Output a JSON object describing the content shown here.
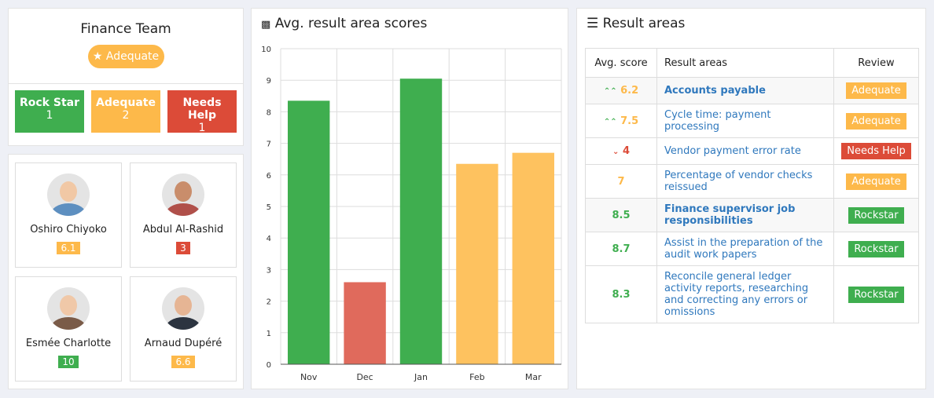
{
  "team": {
    "name": "Finance Team",
    "status": "Adequate",
    "stats": [
      {
        "label": "Rock Star",
        "count": "1",
        "color": "#3fae4f"
      },
      {
        "label": "Adequate",
        "count": "2",
        "color": "#fdb94a"
      },
      {
        "label": "Needs Help",
        "count": "1",
        "color": "#dc4b38"
      }
    ]
  },
  "members": [
    {
      "name": "Oshiro Chiyoko",
      "score": "6.1",
      "color": "#fdb94a"
    },
    {
      "name": "Abdul Al-Rashid",
      "score": "3",
      "color": "#dc4b38"
    },
    {
      "name": "Esmée Charlotte",
      "score": "10",
      "color": "#3fae4f"
    },
    {
      "name": "Arnaud Dupéré",
      "score": "6.6",
      "color": "#fdb94a"
    }
  ],
  "chart_title": "Avg. result area scores",
  "chart_data": {
    "type": "bar",
    "categories": [
      "Nov",
      "Dec",
      "Jan",
      "Feb",
      "Mar"
    ],
    "values": [
      8.35,
      2.6,
      9.05,
      6.35,
      6.7
    ],
    "colors": [
      "#3fae4f",
      "#e06a5c",
      "#3fae4f",
      "#fec25f",
      "#fec25f"
    ],
    "ylim": [
      0,
      10
    ],
    "yticks": [
      0,
      1,
      2,
      3,
      4,
      5,
      6,
      7,
      8,
      9,
      10
    ],
    "grid": true
  },
  "results": {
    "title": "Result areas",
    "headers": [
      "Avg. score",
      "Result areas",
      "Review"
    ],
    "rows": [
      {
        "trend": "up",
        "score": "6.2",
        "score_color": "#fdb94a",
        "area": "Accounts payable",
        "bold": true,
        "review": "Adequate",
        "review_color": "#fdb94a"
      },
      {
        "trend": "up",
        "score": "7.5",
        "score_color": "#fdb94a",
        "area": "Cycle time: payment processing",
        "bold": false,
        "review": "Adequate",
        "review_color": "#fdb94a"
      },
      {
        "trend": "down",
        "score": "4",
        "score_color": "#dc4b38",
        "area": "Vendor payment error rate",
        "bold": false,
        "review": "Needs Help",
        "review_color": "#dc4b38"
      },
      {
        "trend": "",
        "score": "7",
        "score_color": "#fdb94a",
        "area": "Percentage of vendor checks reissued",
        "bold": false,
        "review": "Adequate",
        "review_color": "#fdb94a"
      },
      {
        "trend": "",
        "score": "8.5",
        "score_color": "#3fae4f",
        "area": "Finance supervisor job responsibilities",
        "bold": true,
        "review": "Rockstar",
        "review_color": "#3fae4f"
      },
      {
        "trend": "",
        "score": "8.7",
        "score_color": "#3fae4f",
        "area": "Assist in the preparation of the audit work papers",
        "bold": false,
        "review": "Rockstar",
        "review_color": "#3fae4f"
      },
      {
        "trend": "",
        "score": "8.3",
        "score_color": "#3fae4f",
        "area": "Reconcile general ledger activity reports, researching and correcting any errors or omissions",
        "bold": false,
        "review": "Rockstar",
        "review_color": "#3fae4f"
      }
    ]
  }
}
